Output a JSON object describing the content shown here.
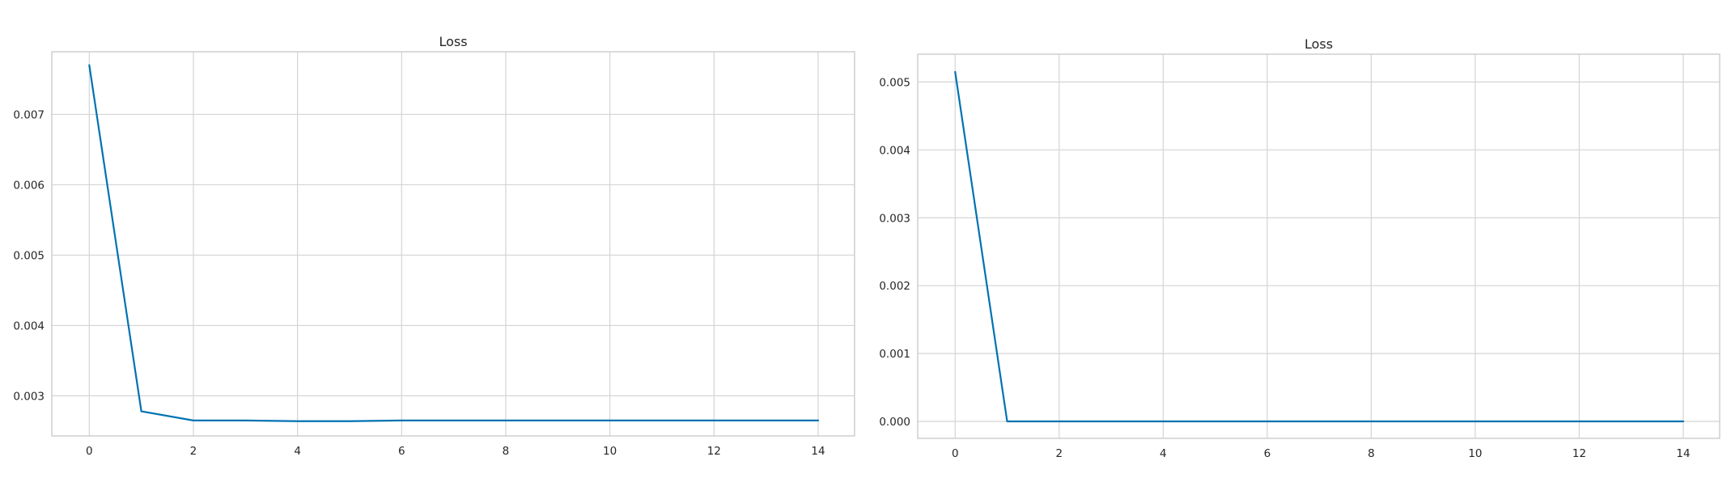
{
  "colors": {
    "line": "#0072B2",
    "grid": "#d4d4d4",
    "frame": "#cfcfcf",
    "text": "#262626",
    "background": "#ffffff"
  },
  "chart_data": [
    {
      "type": "line",
      "title": "Loss",
      "xlabel": "",
      "ylabel": "",
      "xlim": [
        -0.72,
        14.7
      ],
      "ylim": [
        0.00243,
        0.00789
      ],
      "xticks": [
        0,
        2,
        4,
        6,
        8,
        10,
        12,
        14
      ],
      "xtick_labels": [
        "0",
        "2",
        "4",
        "6",
        "8",
        "10",
        "12",
        "14"
      ],
      "yticks": [
        0.003,
        0.004,
        0.005,
        0.006,
        0.007
      ],
      "ytick_labels": [
        "0.003",
        "0.004",
        "0.005",
        "0.006",
        "0.007"
      ],
      "grid": true,
      "legend": "none",
      "series": [
        {
          "x": [
            0,
            1,
            2,
            3,
            4,
            5,
            6,
            7,
            8,
            9,
            10,
            11,
            12,
            13,
            14
          ],
          "values": [
            0.0077,
            0.00278,
            0.00265,
            0.00265,
            0.00264,
            0.00264,
            0.00265,
            0.00265,
            0.00265,
            0.00265,
            0.00265,
            0.00265,
            0.00265,
            0.00265,
            0.00265
          ]
        }
      ]
    },
    {
      "type": "line",
      "title": "Loss",
      "xlabel": "",
      "ylabel": "",
      "xlim": [
        -0.72,
        14.7
      ],
      "ylim": [
        -0.00025,
        0.00541
      ],
      "xticks": [
        0,
        2,
        4,
        6,
        8,
        10,
        12,
        14
      ],
      "xtick_labels": [
        "0",
        "2",
        "4",
        "6",
        "8",
        "10",
        "12",
        "14"
      ],
      "yticks": [
        0.0,
        0.001,
        0.002,
        0.003,
        0.004,
        0.005
      ],
      "ytick_labels": [
        "0.000",
        "0.001",
        "0.002",
        "0.003",
        "0.004",
        "0.005"
      ],
      "grid": true,
      "legend": "none",
      "series": [
        {
          "x": [
            0,
            1,
            2,
            3,
            4,
            5,
            6,
            7,
            8,
            9,
            10,
            11,
            12,
            13,
            14
          ],
          "values": [
            0.00515,
            0.0,
            0.0,
            0.0,
            0.0,
            0.0,
            0.0,
            0.0,
            0.0,
            0.0,
            0.0,
            0.0,
            0.0,
            0.0,
            0.0
          ]
        }
      ]
    }
  ]
}
